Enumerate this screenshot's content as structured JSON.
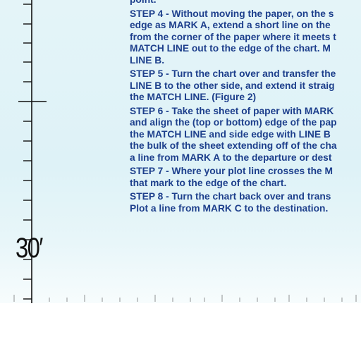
{
  "chart": {
    "latitude_label": "30′",
    "colors": {
      "background": "#e0f3f7",
      "text": "#1d3f8c",
      "scale": "#111111"
    }
  },
  "instructions": {
    "steps": [
      {
        "lines": [
          "point."
        ]
      },
      {
        "lines": [
          "STEP 4 - Without moving the paper, on the s",
          "edge as MARK A, extend a short line on the",
          "from the corner of the paper where it meets t",
          "MATCH LINE out to the edge of the chart.  M",
          "LINE B."
        ]
      },
      {
        "lines": [
          "STEP 5 - Turn the chart over and transfer the",
          "LINE B to the other side, and extend it straig",
          "the MATCH LINE.  (Figure 2)"
        ]
      },
      {
        "lines": [
          "STEP 6 - Take the sheet of paper with MARK",
          "and align the (top or bottom) edge of the pap",
          "the MATCH LINE and side edge with LINE B",
          "the bulk of the sheet extending off of the cha",
          "a line from MARK A to the departure or dest"
        ]
      },
      {
        "lines": [
          "STEP 7 - Where your plot line crosses the M",
          "that mark to the edge of the chart."
        ]
      },
      {
        "lines": [
          "STEP 8 - Turn the chart back over and trans",
          "Plot a line from MARK C to the destination."
        ]
      }
    ]
  }
}
